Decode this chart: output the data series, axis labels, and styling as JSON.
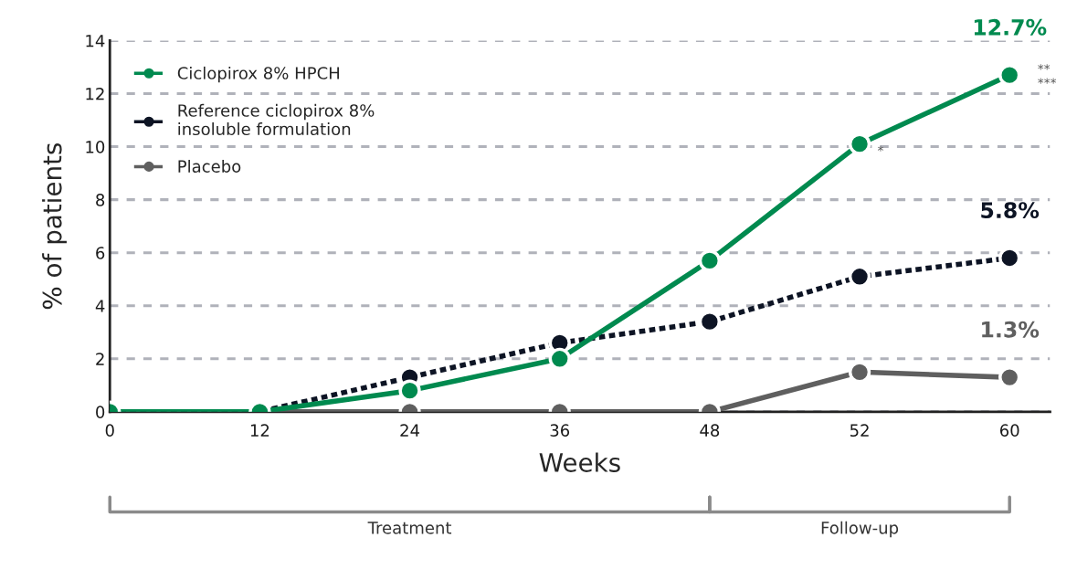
{
  "chart_data": {
    "type": "line",
    "xlabel": "Weeks",
    "ylabel": "% of patients",
    "categories": [
      "0",
      "12",
      "24",
      "36",
      "48",
      "52",
      "60"
    ],
    "series": [
      {
        "name": "Ciclopirox 8% HPCH",
        "color": "#008a4f",
        "line_style": "solid",
        "values": [
          0,
          0,
          0.8,
          2.0,
          5.7,
          10.1,
          12.7
        ],
        "value_labels": [
          null,
          null,
          null,
          null,
          null,
          null,
          "12.7%"
        ]
      },
      {
        "name": "Reference ciclopirox 8%\ninsoluble formulation",
        "color": "#0d1424",
        "line_style": "dotted",
        "values": [
          0,
          0,
          1.3,
          2.6,
          3.4,
          5.1,
          5.8
        ],
        "value_labels": [
          null,
          null,
          null,
          null,
          null,
          null,
          "5.8%"
        ]
      },
      {
        "name": "Placebo",
        "color": "#5f5f5f",
        "line_style": "solid",
        "values": [
          0,
          0,
          0,
          0,
          0,
          1.5,
          1.3
        ],
        "value_labels": [
          null,
          null,
          null,
          null,
          null,
          null,
          "1.3%"
        ]
      }
    ],
    "ylim": [
      0,
      14
    ],
    "yticks": [
      0,
      2,
      4,
      6,
      8,
      10,
      12,
      14
    ],
    "grid": "y",
    "legend": "top left",
    "marker": "circle",
    "annotations": [
      {
        "text": "*",
        "x": "52",
        "y": 10.1
      },
      {
        "text": "**",
        "x": "60",
        "y": 12.7
      },
      {
        "text": "***",
        "x": "60",
        "y": 12.7
      },
      "Treatment",
      "Follow-up"
    ]
  }
}
